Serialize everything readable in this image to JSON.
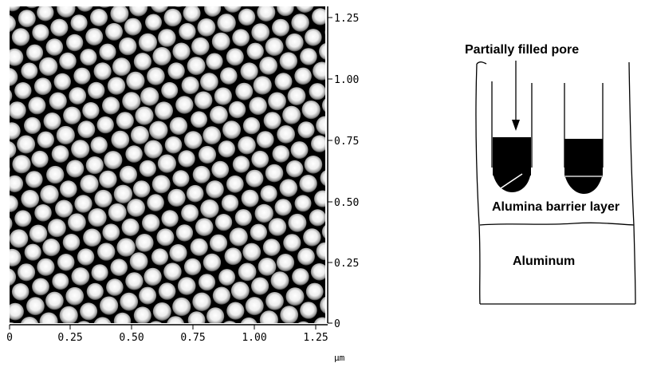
{
  "afm_image": {
    "x_ticks": [
      "0",
      "0.25",
      "0.50",
      "0.75",
      "1.00",
      "1.25"
    ],
    "y_ticks": [
      "1.25",
      "1.00",
      "0.75",
      "0.50",
      "0.25",
      "0"
    ],
    "x_unit": "μm"
  },
  "schematic": {
    "pore_label": "Partially filled pore",
    "barrier_label": "Alumina barrier layer",
    "aluminum_label": "Aluminum"
  }
}
